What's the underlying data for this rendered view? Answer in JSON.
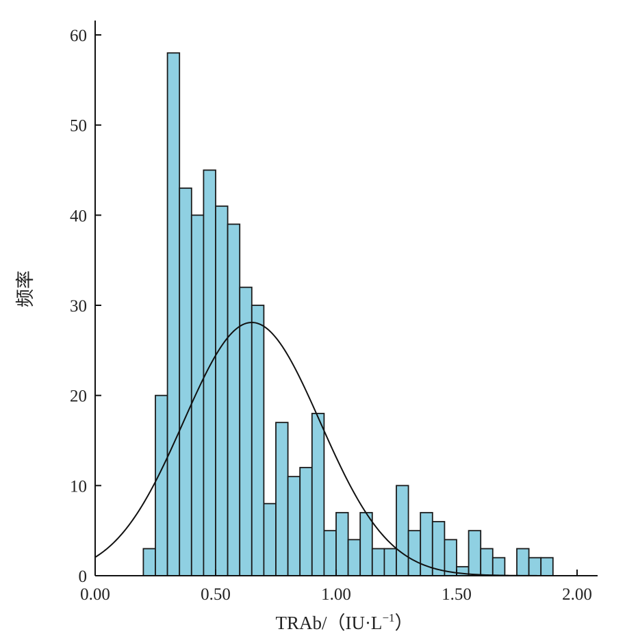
{
  "chart_data": {
    "type": "bar",
    "title": "",
    "xlabel": "TRAb/（IU·L",
    "xlabel_superscript": "−1",
    "xlabel_close": "）",
    "ylabel": "频率",
    "xlim": [
      0,
      2.08
    ],
    "ylim": [
      0,
      62
    ],
    "x_ticks": [
      "0.00",
      "0.50",
      "1.00",
      "1.50",
      "2.00"
    ],
    "x_tick_values": [
      0,
      0.5,
      1.0,
      1.5,
      2.0
    ],
    "y_ticks": [
      "0",
      "10",
      "20",
      "30",
      "40",
      "50",
      "60"
    ],
    "y_tick_values": [
      0,
      10,
      20,
      30,
      40,
      50,
      60
    ],
    "bin_width": 0.05,
    "bins": [
      {
        "x": 0.2,
        "count": 3
      },
      {
        "x": 0.25,
        "count": 20
      },
      {
        "x": 0.3,
        "count": 58
      },
      {
        "x": 0.35,
        "count": 43
      },
      {
        "x": 0.4,
        "count": 40
      },
      {
        "x": 0.45,
        "count": 45
      },
      {
        "x": 0.5,
        "count": 41
      },
      {
        "x": 0.55,
        "count": 39
      },
      {
        "x": 0.6,
        "count": 32
      },
      {
        "x": 0.65,
        "count": 30
      },
      {
        "x": 0.7,
        "count": 8
      },
      {
        "x": 0.75,
        "count": 17
      },
      {
        "x": 0.8,
        "count": 11
      },
      {
        "x": 0.85,
        "count": 12
      },
      {
        "x": 0.9,
        "count": 18
      },
      {
        "x": 0.95,
        "count": 5
      },
      {
        "x": 1.0,
        "count": 7
      },
      {
        "x": 1.05,
        "count": 4
      },
      {
        "x": 1.1,
        "count": 7
      },
      {
        "x": 1.15,
        "count": 3
      },
      {
        "x": 1.2,
        "count": 3
      },
      {
        "x": 1.25,
        "count": 10
      },
      {
        "x": 1.3,
        "count": 5
      },
      {
        "x": 1.35,
        "count": 7
      },
      {
        "x": 1.4,
        "count": 6
      },
      {
        "x": 1.45,
        "count": 4
      },
      {
        "x": 1.5,
        "count": 1
      },
      {
        "x": 1.55,
        "count": 5
      },
      {
        "x": 1.6,
        "count": 3
      },
      {
        "x": 1.65,
        "count": 2
      },
      {
        "x": 1.75,
        "count": 3
      },
      {
        "x": 1.8,
        "count": 2
      },
      {
        "x": 1.85,
        "count": 2
      }
    ],
    "normal_curve": {
      "mean": 0.65,
      "peak": 28.1,
      "sd": 0.284
    },
    "colors": {
      "bar_fill": "#8fd0e2",
      "bar_stroke": "#1a1a1a",
      "curve": "#111111",
      "axis": "#111111"
    },
    "grid": false,
    "legend": "none"
  }
}
